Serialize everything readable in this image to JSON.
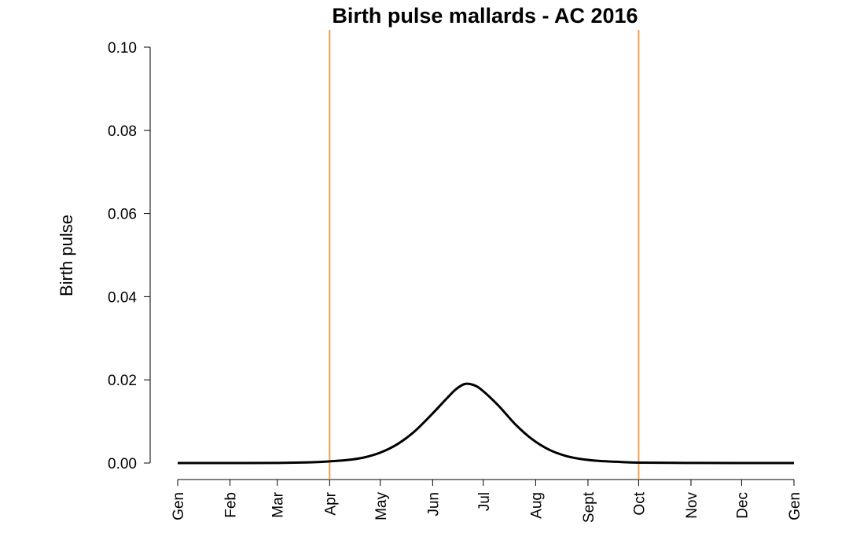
{
  "chart_data": {
    "type": "line",
    "title": "Birth pulse mallards - AC 2016",
    "xlabel": "",
    "ylabel": "Birth pulse",
    "x_unit": "day of year",
    "xlim": [
      0,
      365
    ],
    "ylim": [
      0,
      0.1
    ],
    "y_ticks": [
      "0.00",
      "0.02",
      "0.04",
      "0.06",
      "0.08",
      "0.10"
    ],
    "x_ticks": [
      {
        "label": "Gen",
        "x": 0
      },
      {
        "label": "Feb",
        "x": 31
      },
      {
        "label": "Mar",
        "x": 59
      },
      {
        "label": "Apr",
        "x": 90
      },
      {
        "label": "May",
        "x": 120
      },
      {
        "label": "Jun",
        "x": 151
      },
      {
        "label": "Jul",
        "x": 181
      },
      {
        "label": "Aug",
        "x": 212
      },
      {
        "label": "Sept",
        "x": 243
      },
      {
        "label": "Oct",
        "x": 273
      },
      {
        "label": "Nov",
        "x": 304
      },
      {
        "label": "Dec",
        "x": 334
      },
      {
        "label": "Gen",
        "x": 365
      }
    ],
    "vlines": [
      {
        "x": 90,
        "color": "#f0a24a"
      },
      {
        "x": 273,
        "color": "#f0a24a"
      }
    ],
    "series": [
      {
        "color": "#000000",
        "x": [
          0,
          30,
          60,
          80,
          90,
          100,
          110,
          120,
          130,
          140,
          150,
          160,
          165,
          170,
          175,
          180,
          190,
          200,
          210,
          220,
          230,
          240,
          250,
          260,
          273,
          300,
          330,
          365
        ],
        "y": [
          0,
          0,
          3e-05,
          0.0002,
          0.0004,
          0.0007,
          0.0013,
          0.0025,
          0.0045,
          0.0075,
          0.0115,
          0.0158,
          0.0178,
          0.019,
          0.0188,
          0.0176,
          0.0138,
          0.0093,
          0.0057,
          0.0032,
          0.0017,
          0.0009,
          0.0005,
          0.0003,
          0.0001,
          3e-05,
          0,
          0
        ]
      }
    ],
    "grid": false,
    "legend": "none"
  }
}
